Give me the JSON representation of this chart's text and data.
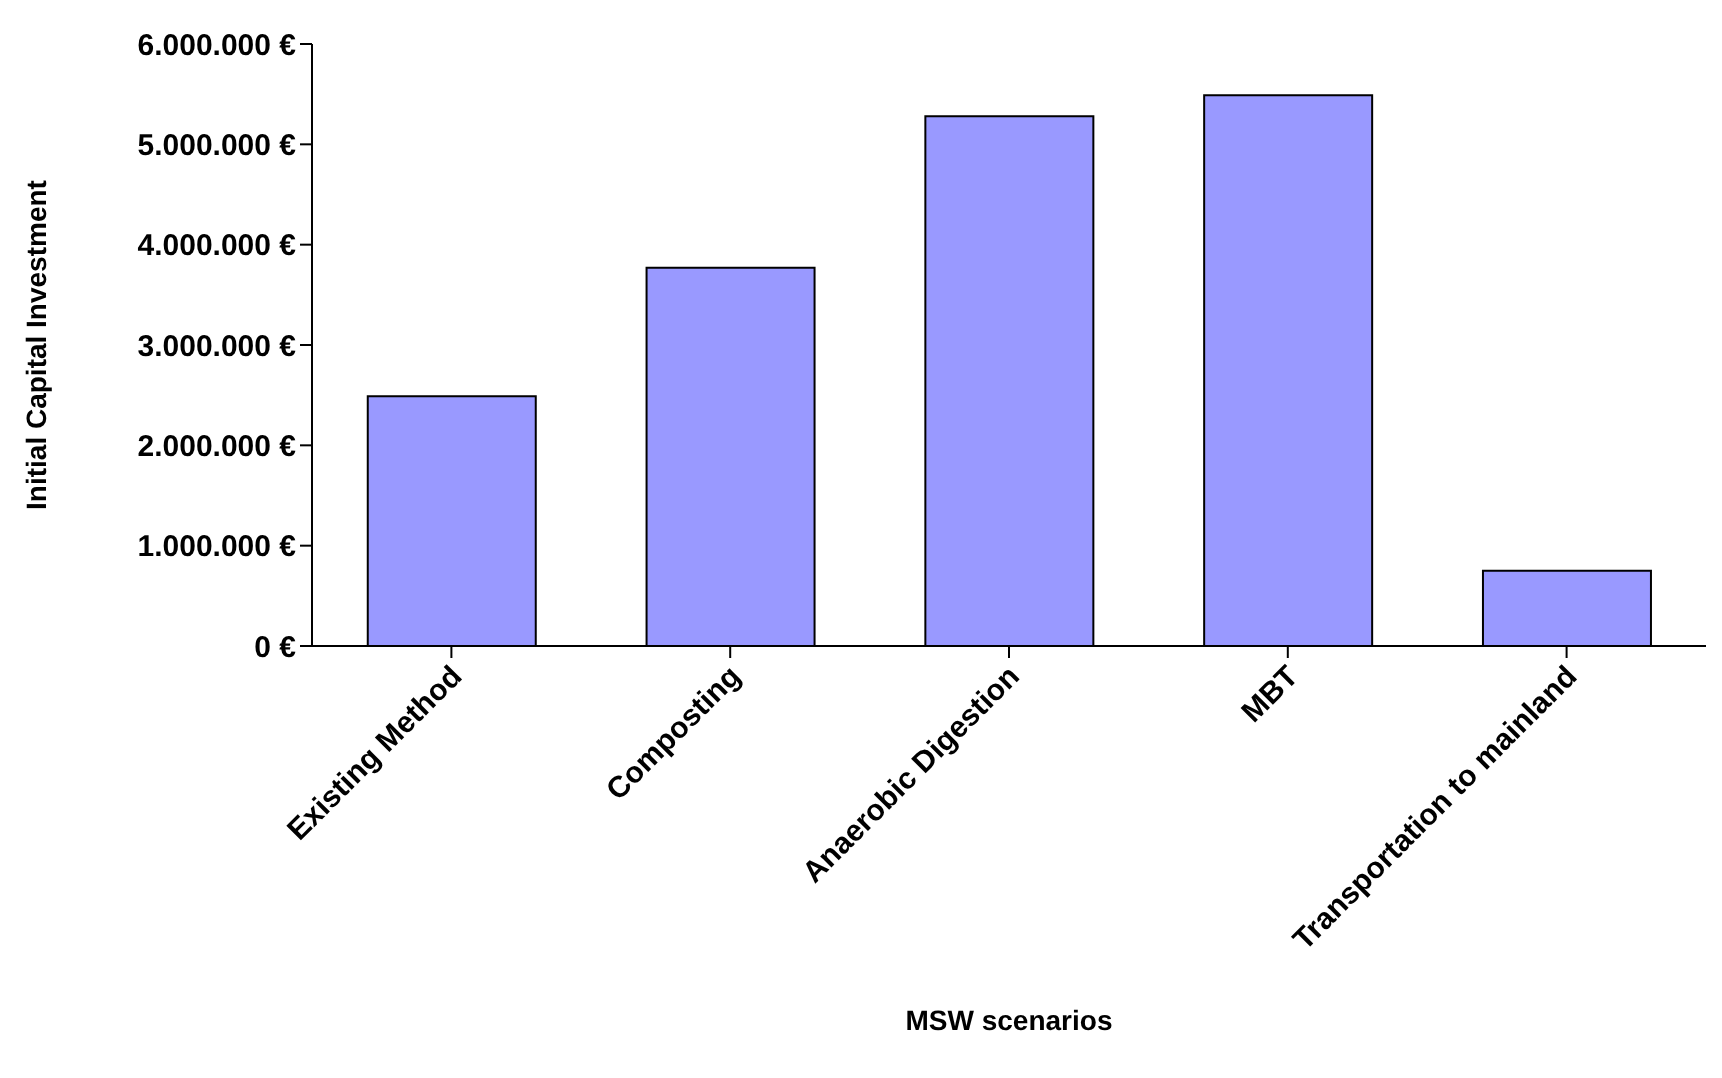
{
  "chart_data": {
    "type": "bar",
    "xlabel": "MSW scenarios",
    "ylabel": "Initial Capital Investment",
    "categories": [
      "Existing Method",
      "Composting",
      "Anaerobic Digestion",
      "MBT",
      "Transportation to mainland"
    ],
    "values": [
      2490000,
      3770000,
      5280000,
      5490000,
      750000
    ],
    "color": "#9999ff",
    "ylim": [
      0,
      6000000
    ],
    "yticks": [
      {
        "value": 0,
        "label": "0 €"
      },
      {
        "value": 1000000,
        "label": "1.000.000 €"
      },
      {
        "value": 2000000,
        "label": "2.000.000 €"
      },
      {
        "value": 3000000,
        "label": "3.000.000 €"
      },
      {
        "value": 4000000,
        "label": "4.000.000 €"
      },
      {
        "value": 5000000,
        "label": "5.000.000 €"
      },
      {
        "value": 6000000,
        "label": "6.000.000 €"
      }
    ],
    "grid": false,
    "legend": false
  }
}
